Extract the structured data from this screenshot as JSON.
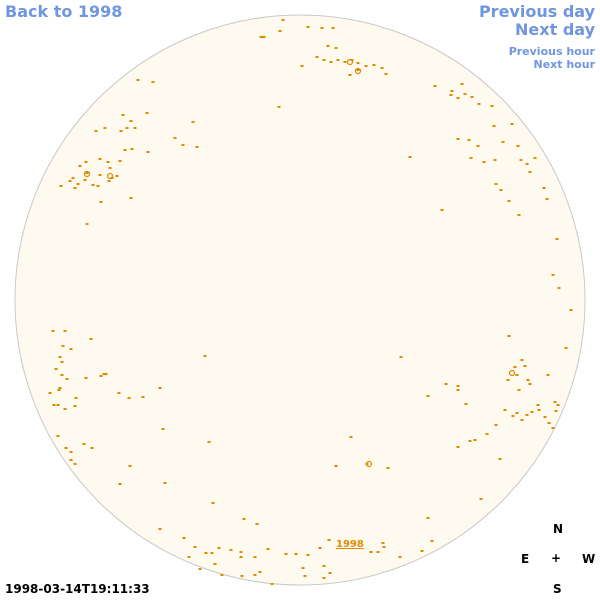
{
  "nav": {
    "back_label": "Back to 1998",
    "prev_day_label": "Previous day",
    "next_day_label": "Next day",
    "prev_hour_label": "Previous hour",
    "next_hour_label": "Next hour"
  },
  "map": {
    "cluster_label": "1998"
  },
  "compass": {
    "north": "N",
    "east": "E",
    "center": "+",
    "west": "W",
    "south": "S"
  },
  "timestamp": "1998-03-14T19:11:33",
  "colors": {
    "link": "#6f96de",
    "disc_fill": "#fffaef",
    "disc_border": "#c8c8c8",
    "marker": "#e08a00"
  }
}
